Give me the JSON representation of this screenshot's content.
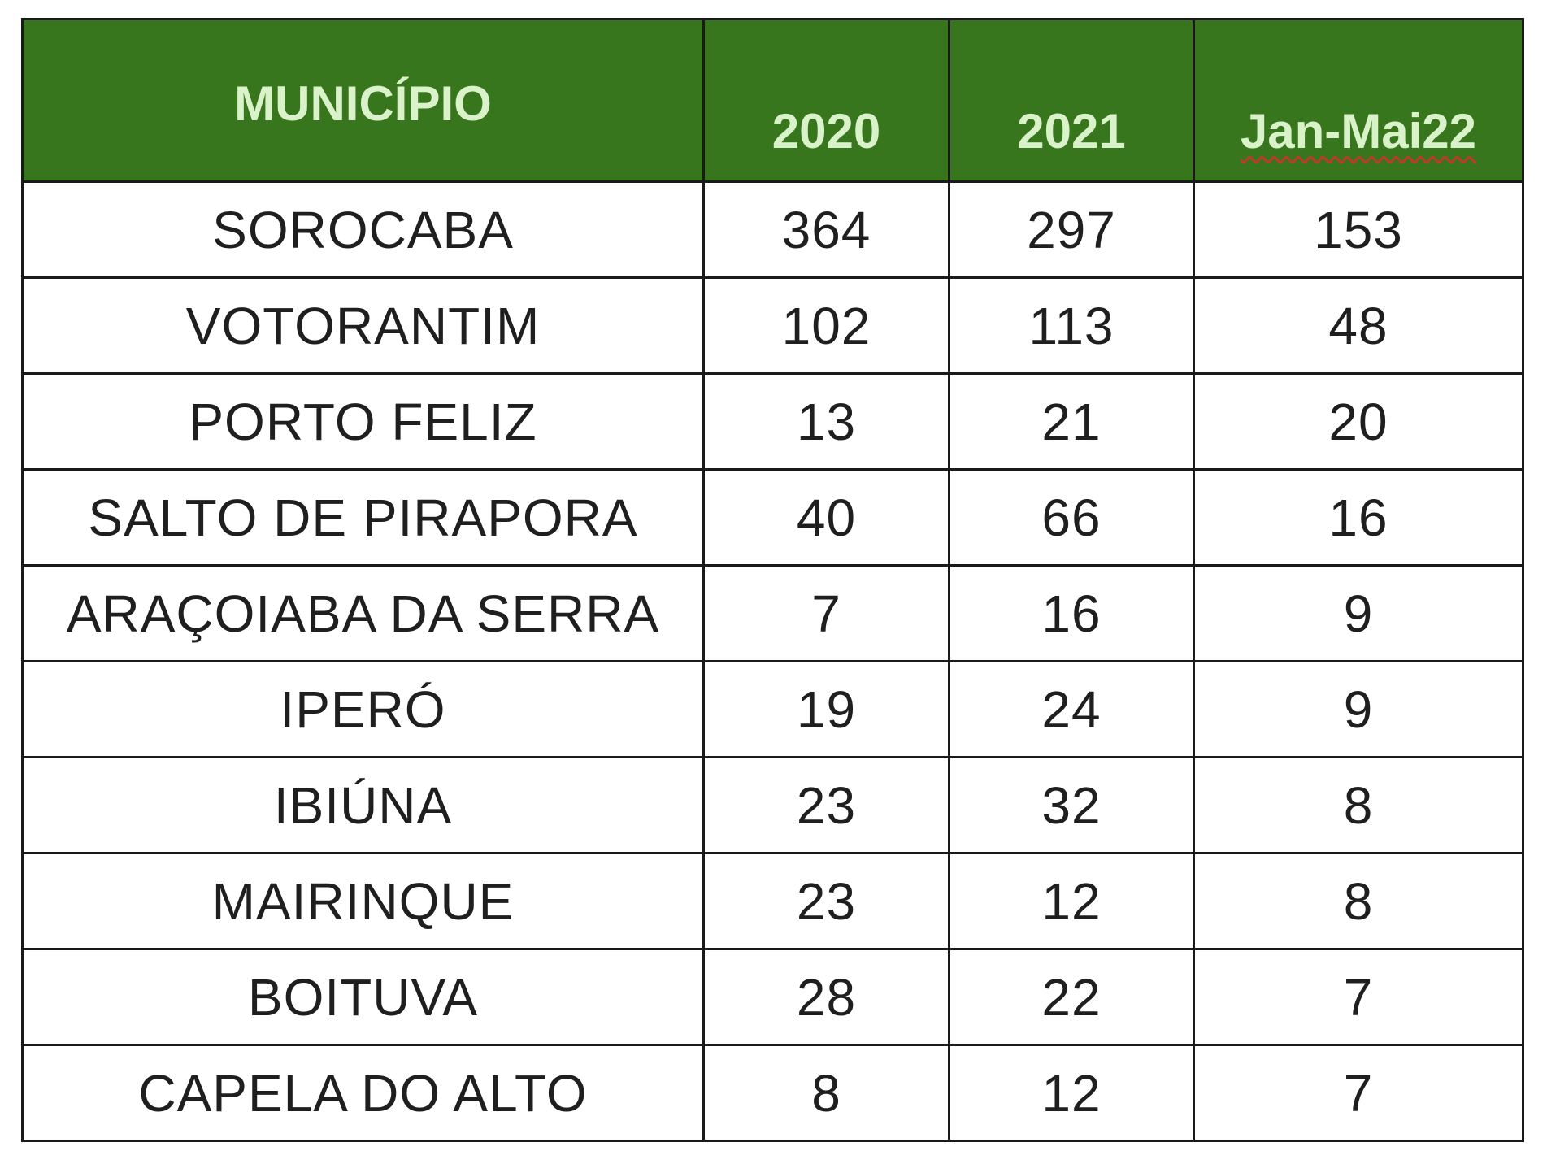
{
  "table": {
    "headers": {
      "municipio": "MUNICÍPIO",
      "y2020": "2020",
      "y2021": "2021",
      "jan_mai22": "Jan-Mai22"
    },
    "rows": [
      {
        "municipio": "SOROCABA",
        "y2020": "364",
        "y2021": "297",
        "jan_mai22": "153"
      },
      {
        "municipio": "VOTORANTIM",
        "y2020": "102",
        "y2021": "113",
        "jan_mai22": "48"
      },
      {
        "municipio": "PORTO FELIZ",
        "y2020": "13",
        "y2021": "21",
        "jan_mai22": "20"
      },
      {
        "municipio": "SALTO DE PIRAPORA",
        "y2020": "40",
        "y2021": "66",
        "jan_mai22": "16"
      },
      {
        "municipio": "ARAÇOIABA DA SERRA",
        "y2020": "7",
        "y2021": "16",
        "jan_mai22": "9"
      },
      {
        "municipio": "IPERÓ",
        "y2020": "19",
        "y2021": "24",
        "jan_mai22": "9"
      },
      {
        "municipio": "IBIÚNA",
        "y2020": "23",
        "y2021": "32",
        "jan_mai22": "8"
      },
      {
        "municipio": "MAIRINQUE",
        "y2020": "23",
        "y2021": "12",
        "jan_mai22": "8"
      },
      {
        "municipio": "BOITUVA",
        "y2020": "28",
        "y2021": "22",
        "jan_mai22": "7"
      },
      {
        "municipio": "CAPELA DO ALTO",
        "y2020": "8",
        "y2021": "12",
        "jan_mai22": "7"
      }
    ]
  },
  "colors": {
    "header_bg": "#38761d",
    "header_text": "#d9f2c9",
    "border": "#1a1a1a",
    "cell_text": "#1f1f1f",
    "spellcheck_underline": "#c0392b"
  }
}
